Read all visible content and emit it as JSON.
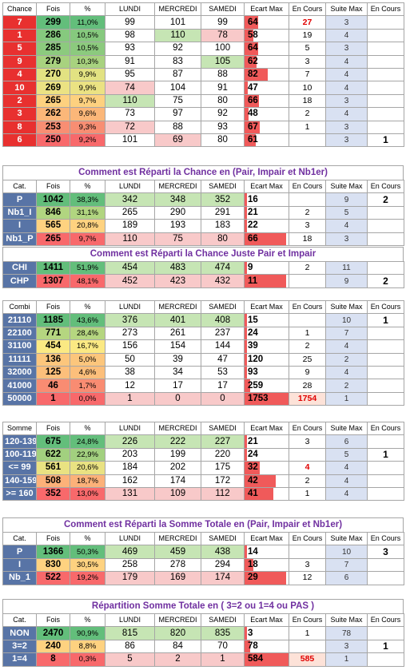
{
  "palette": {
    "chance_label": "#e8302f",
    "cat_label": "#5874a6",
    "green": "#a9d08e",
    "red": "#f4a8a8",
    "bar": "#f05a5a"
  },
  "chance_table": {
    "headers": [
      "Chance",
      "Fois",
      "%",
      "LUNDI",
      "MERCREDI",
      "SAMEDI",
      "Ecart Max",
      "En Cours",
      "Suite Max",
      "En Cours"
    ],
    "rows": [
      {
        "label": "7",
        "fois": "299",
        "pct": "11,0%",
        "lundi": "99",
        "mercredi": "101",
        "samedi": "99",
        "ecart": "64",
        "encours": "27",
        "suite": "3",
        "last": "",
        "fois_bg": "#63be7b",
        "pct_bg": "#63be7b",
        "lun_bg": "",
        "mer_bg": "",
        "sam_bg": "",
        "ecart_w": 0.3,
        "encours_red": true
      },
      {
        "label": "1",
        "fois": "286",
        "pct": "10,5%",
        "lundi": "98",
        "mercredi": "110",
        "samedi": "78",
        "ecart": "58",
        "encours": "19",
        "suite": "4",
        "last": "",
        "fois_bg": "#86c97e",
        "pct_bg": "#86c97e",
        "lun_bg": "",
        "mer_bg": "#c6e5b4",
        "sam_bg": "#f8c9c9",
        "ecart_w": 0.2
      },
      {
        "label": "5",
        "fois": "285",
        "pct": "10,5%",
        "lundi": "93",
        "mercredi": "92",
        "samedi": "100",
        "ecart": "64",
        "encours": "5",
        "suite": "3",
        "last": "",
        "fois_bg": "#8cca7e",
        "pct_bg": "#8cca7e",
        "lun_bg": "",
        "mer_bg": "",
        "sam_bg": "",
        "ecart_w": 0.3
      },
      {
        "label": "9",
        "fois": "279",
        "pct": "10,3%",
        "lundi": "91",
        "mercredi": "83",
        "samedi": "105",
        "ecart": "62",
        "encours": "3",
        "suite": "4",
        "last": "",
        "fois_bg": "#a8d27f",
        "pct_bg": "#a8d27f",
        "lun_bg": "",
        "mer_bg": "",
        "sam_bg": "#c6e5b4",
        "ecart_w": 0.27
      },
      {
        "label": "4",
        "fois": "270",
        "pct": "9,9%",
        "lundi": "95",
        "mercredi": "87",
        "samedi": "88",
        "ecart": "82",
        "encours": "7",
        "suite": "4",
        "last": "",
        "fois_bg": "#e2e282",
        "pct_bg": "#e2e282",
        "lun_bg": "",
        "mer_bg": "",
        "sam_bg": "",
        "ecart_w": 0.52
      },
      {
        "label": "10",
        "fois": "269",
        "pct": "9,9%",
        "lundi": "74",
        "mercredi": "104",
        "samedi": "91",
        "ecart": "47",
        "encours": "10",
        "suite": "4",
        "last": "",
        "fois_bg": "#ebe283",
        "pct_bg": "#ebe283",
        "lun_bg": "#f8c9c9",
        "mer_bg": "",
        "sam_bg": "",
        "ecart_w": 0.08
      },
      {
        "label": "2",
        "fois": "265",
        "pct": "9,7%",
        "lundi": "110",
        "mercredi": "75",
        "samedi": "80",
        "ecart": "66",
        "encours": "18",
        "suite": "3",
        "last": "",
        "fois_bg": "#fdd17f",
        "pct_bg": "#fdd17f",
        "lun_bg": "#c6e5b4",
        "mer_bg": "",
        "sam_bg": "",
        "ecart_w": 0.33
      },
      {
        "label": "3",
        "fois": "262",
        "pct": "9,6%",
        "lundi": "73",
        "mercredi": "97",
        "samedi": "92",
        "ecart": "48",
        "encours": "2",
        "suite": "4",
        "last": "",
        "fois_bg": "#fbb779",
        "pct_bg": "#fbb779",
        "lun_bg": "",
        "mer_bg": "",
        "sam_bg": "",
        "ecart_w": 0.09
      },
      {
        "label": "8",
        "fois": "253",
        "pct": "9,3%",
        "lundi": "72",
        "mercredi": "88",
        "samedi": "93",
        "ecart": "67",
        "encours": "1",
        "suite": "3",
        "last": "",
        "fois_bg": "#f88e73",
        "pct_bg": "#f88e73",
        "lun_bg": "#f8c9c9",
        "mer_bg": "",
        "sam_bg": "",
        "ecart_w": 0.35
      },
      {
        "label": "6",
        "fois": "250",
        "pct": "9,2%",
        "lundi": "101",
        "mercredi": "69",
        "samedi": "80",
        "ecart": "61",
        "encours": "",
        "suite": "3",
        "last": "1",
        "fois_bg": "#f8696b",
        "pct_bg": "#f8696b",
        "lun_bg": "",
        "mer_bg": "#f8c9c9",
        "sam_bg": "",
        "ecart_w": 0.25
      }
    ]
  },
  "cat_table": {
    "title": "Comment est Réparti la Chance en (Pair, Impair et Nb1er)",
    "headers": [
      "Cat.",
      "Fois",
      "%",
      "LUNDI",
      "MERCREDI",
      "SAMEDI",
      "Ecart Max",
      "En Cours",
      "Suite Max",
      "En Cours"
    ],
    "rows": [
      {
        "label": "P",
        "fois": "1042",
        "pct": "38,3%",
        "lundi": "342",
        "mercredi": "348",
        "samedi": "352",
        "ecart": "16",
        "encours": "",
        "suite": "9",
        "last": "2",
        "fois_bg": "#63be7b",
        "pct_bg": "#63be7b",
        "lun_bg": "#c6e5b4",
        "mer_bg": "#c6e5b4",
        "sam_bg": "#c6e5b4",
        "ecart_w": 0.05
      },
      {
        "label": "Nb1_I",
        "fois": "846",
        "pct": "31,1%",
        "lundi": "265",
        "mercredi": "290",
        "samedi": "291",
        "ecart": "21",
        "encours": "2",
        "suite": "5",
        "last": "",
        "fois_bg": "#b1d580",
        "pct_bg": "#b1d580",
        "lun_bg": "",
        "mer_bg": "",
        "sam_bg": "",
        "ecart_w": 0.0
      },
      {
        "label": "I",
        "fois": "565",
        "pct": "20,8%",
        "lundi": "189",
        "mercredi": "193",
        "samedi": "183",
        "ecart": "22",
        "encours": "3",
        "suite": "4",
        "last": "",
        "fois_bg": "#fed280",
        "pct_bg": "#fed280",
        "lun_bg": "",
        "mer_bg": "",
        "sam_bg": "",
        "ecart_w": 0.03
      },
      {
        "label": "Nb1_P",
        "fois": "265",
        "pct": "9,7%",
        "lundi": "110",
        "mercredi": "75",
        "samedi": "80",
        "ecart": "66",
        "encours": "18",
        "suite": "3",
        "last": "",
        "fois_bg": "#f8696b",
        "pct_bg": "#f8696b",
        "lun_bg": "#f8c9c9",
        "mer_bg": "#f8c9c9",
        "sam_bg": "#f8c9c9",
        "ecart_w": 0.95
      }
    ]
  },
  "pair_table": {
    "title": "Comment est Réparti la Chance Juste Pair et Impair",
    "rows": [
      {
        "label": "CHI",
        "fois": "1411",
        "pct": "51,9%",
        "lundi": "454",
        "mercredi": "483",
        "samedi": "474",
        "ecart": "9",
        "encours": "2",
        "suite": "11",
        "last": "",
        "fois_bg": "#63be7b",
        "pct_bg": "#63be7b",
        "lun_bg": "#c6e5b4",
        "mer_bg": "#c6e5b4",
        "sam_bg": "#c6e5b4",
        "ecart_w": 0.05
      },
      {
        "label": "CHP",
        "fois": "1307",
        "pct": "48,1%",
        "lundi": "452",
        "mercredi": "423",
        "samedi": "432",
        "ecart": "11",
        "encours": "",
        "suite": "9",
        "last": "2",
        "fois_bg": "#f8696b",
        "pct_bg": "#f8696b",
        "lun_bg": "#f8c9c9",
        "mer_bg": "#f8c9c9",
        "sam_bg": "#f8c9c9",
        "ecart_w": 0.95
      }
    ]
  },
  "combi_table": {
    "headers": [
      "Combi",
      "Fois",
      "%",
      "LUNDI",
      "MERCREDI",
      "SAMEDI",
      "Ecart Max",
      "En Cours",
      "Suite Max",
      "En Cours"
    ],
    "rows": [
      {
        "label": "21110",
        "fois": "1185",
        "pct": "43,6%",
        "lundi": "376",
        "mercredi": "401",
        "samedi": "408",
        "ecart": "15",
        "encours": "",
        "suite": "10",
        "last": "1",
        "fois_bg": "#63be7b",
        "pct_bg": "#63be7b",
        "lun_bg": "#c6e5b4",
        "mer_bg": "#c6e5b4",
        "sam_bg": "#c6e5b4",
        "ecart_w": 0.0
      },
      {
        "label": "22100",
        "fois": "771",
        "pct": "28,4%",
        "lundi": "273",
        "mercredi": "261",
        "samedi": "237",
        "ecart": "24",
        "encours": "1",
        "suite": "7",
        "last": "",
        "fois_bg": "#b5d680",
        "pct_bg": "#b5d680",
        "lun_bg": "",
        "mer_bg": "",
        "sam_bg": "",
        "ecart_w": 0.0
      },
      {
        "label": "31100",
        "fois": "454",
        "pct": "16,7%",
        "lundi": "156",
        "mercredi": "154",
        "samedi": "144",
        "ecart": "39",
        "encours": "2",
        "suite": "4",
        "last": "",
        "fois_bg": "#fbe983",
        "pct_bg": "#fbe983",
        "lun_bg": "",
        "mer_bg": "",
        "sam_bg": "",
        "ecart_w": 0.01
      },
      {
        "label": "11111",
        "fois": "136",
        "pct": "5,0%",
        "lundi": "50",
        "mercredi": "39",
        "samedi": "47",
        "ecart": "120",
        "encours": "25",
        "suite": "2",
        "last": "",
        "fois_bg": "#fcc67c",
        "pct_bg": "#fcc67c",
        "lun_bg": "",
        "mer_bg": "",
        "sam_bg": "",
        "ecart_w": 0.04
      },
      {
        "label": "32000",
        "fois": "125",
        "pct": "4,6%",
        "lundi": "38",
        "mercredi": "34",
        "samedi": "53",
        "ecart": "93",
        "encours": "9",
        "suite": "4",
        "last": "",
        "fois_bg": "#fcbf7b",
        "pct_bg": "#fcbf7b",
        "lun_bg": "",
        "mer_bg": "",
        "sam_bg": "",
        "ecart_w": 0.03
      },
      {
        "label": "41000",
        "fois": "46",
        "pct": "1,7%",
        "lundi": "12",
        "mercredi": "17",
        "samedi": "17",
        "ecart": "259",
        "encours": "28",
        "suite": "2",
        "last": "",
        "fois_bg": "#f98c72",
        "pct_bg": "#f98c72",
        "lun_bg": "",
        "mer_bg": "",
        "sam_bg": "",
        "ecart_w": 0.12
      },
      {
        "label": "50000",
        "fois": "1",
        "pct": "0,0%",
        "lundi": "1",
        "mercredi": "0",
        "samedi": "0",
        "ecart": "1753",
        "encours": "1754",
        "suite": "1",
        "last": "",
        "fois_bg": "#f8696b",
        "pct_bg": "#f8696b",
        "lun_bg": "#f8c9c9",
        "mer_bg": "#f8c9c9",
        "sam_bg": "#f8c9c9",
        "ecart_w": 1.0,
        "encours_red": true,
        "encours_bg": "#fde2d8"
      }
    ]
  },
  "somme_table": {
    "headers": [
      "Somme",
      "Fois",
      "%",
      "LUNDI",
      "MERCREDI",
      "SAMEDI",
      "Ecart Max",
      "En Cours",
      "Suite Max",
      "En Cours"
    ],
    "rows": [
      {
        "label": "120-139",
        "fois": "675",
        "pct": "24,8%",
        "lundi": "226",
        "mercredi": "222",
        "samedi": "227",
        "ecart": "21",
        "encours": "3",
        "suite": "6",
        "last": "",
        "fois_bg": "#63be7b",
        "pct_bg": "#63be7b",
        "lun_bg": "#c6e5b4",
        "mer_bg": "#c6e5b4",
        "sam_bg": "#c6e5b4",
        "ecart_w": 0.0
      },
      {
        "label": "100-119",
        "fois": "622",
        "pct": "22,9%",
        "lundi": "203",
        "mercredi": "199",
        "samedi": "220",
        "ecart": "24",
        "encours": "",
        "suite": "5",
        "last": "1",
        "fois_bg": "#a2d07f",
        "pct_bg": "#a2d07f",
        "lun_bg": "",
        "mer_bg": "",
        "sam_bg": "",
        "ecart_w": 0.0
      },
      {
        "label": "<= 99",
        "fois": "561",
        "pct": "20,6%",
        "lundi": "184",
        "mercredi": "202",
        "samedi": "175",
        "ecart": "32",
        "encours": "4",
        "suite": "4",
        "last": "",
        "fois_bg": "#e9e282",
        "pct_bg": "#e9e282",
        "lun_bg": "",
        "mer_bg": "",
        "sam_bg": "",
        "ecart_w": 0.35,
        "encours_red": true
      },
      {
        "label": "140-159",
        "fois": "508",
        "pct": "18,7%",
        "lundi": "162",
        "mercredi": "174",
        "samedi": "172",
        "ecart": "42",
        "encours": "2",
        "suite": "4",
        "last": "",
        "fois_bg": "#fcb179",
        "pct_bg": "#fcb179",
        "lun_bg": "",
        "mer_bg": "",
        "sam_bg": "",
        "ecart_w": 0.7
      },
      {
        "label": ">= 160",
        "fois": "352",
        "pct": "13,0%",
        "lundi": "131",
        "mercredi": "109",
        "samedi": "112",
        "ecart": "41",
        "encours": "1",
        "suite": "4",
        "last": "",
        "fois_bg": "#f8696b",
        "pct_bg": "#f8696b",
        "lun_bg": "#f8c9c9",
        "mer_bg": "#f8c9c9",
        "sam_bg": "#f8c9c9",
        "ecart_w": 0.65
      }
    ]
  },
  "stotal_table": {
    "title": "Comment est Réparti la Somme Totale en (Pair, Impair et Nb1er)",
    "headers": [
      "Cat.",
      "Fois",
      "%",
      "LUNDI",
      "MERCREDI",
      "SAMEDI",
      "Ecart Max",
      "En Cours",
      "Suite Max",
      "En Cours"
    ],
    "rows": [
      {
        "label": "P",
        "fois": "1366",
        "pct": "50,3%",
        "lundi": "469",
        "mercredi": "459",
        "samedi": "438",
        "ecart": "14",
        "encours": "",
        "suite": "10",
        "last": "3",
        "fois_bg": "#63be7b",
        "pct_bg": "#63be7b",
        "lun_bg": "#c6e5b4",
        "mer_bg": "#c6e5b4",
        "sam_bg": "#c6e5b4",
        "ecart_w": 0.0
      },
      {
        "label": "I",
        "fois": "830",
        "pct": "30,5%",
        "lundi": "258",
        "mercredi": "278",
        "samedi": "294",
        "ecart": "18",
        "encours": "3",
        "suite": "7",
        "last": "",
        "fois_bg": "#fed280",
        "pct_bg": "#fed280",
        "lun_bg": "",
        "mer_bg": "",
        "sam_bg": "",
        "ecart_w": 0.2
      },
      {
        "label": "Nb_1",
        "fois": "522",
        "pct": "19,2%",
        "lundi": "179",
        "mercredi": "169",
        "samedi": "174",
        "ecart": "29",
        "encours": "12",
        "suite": "6",
        "last": "",
        "fois_bg": "#f8696b",
        "pct_bg": "#f8696b",
        "lun_bg": "#f8c9c9",
        "mer_bg": "#f8c9c9",
        "sam_bg": "#f8c9c9",
        "ecart_w": 0.95
      }
    ]
  },
  "rep_table": {
    "title": "Répartition Somme Totale en ( 3=2 ou 1=4 ou PAS )",
    "headers": [
      "Cat.",
      "Fois",
      "%",
      "LUNDI",
      "MERCREDI",
      "SAMEDI",
      "Ecart Max",
      "En Cours",
      "Suite Max",
      "En Cours"
    ],
    "rows": [
      {
        "label": "NON",
        "fois": "2470",
        "pct": "90,9%",
        "lundi": "815",
        "mercredi": "820",
        "samedi": "835",
        "ecart": "3",
        "encours": "1",
        "suite": "78",
        "last": "",
        "fois_bg": "#63be7b",
        "pct_bg": "#63be7b",
        "lun_bg": "#c6e5b4",
        "mer_bg": "#c6e5b4",
        "sam_bg": "#c6e5b4",
        "ecart_w": 0.0
      },
      {
        "label": "3=2",
        "fois": "240",
        "pct": "8,8%",
        "lundi": "86",
        "mercredi": "84",
        "samedi": "70",
        "ecart": "78",
        "encours": "",
        "suite": "3",
        "last": "1",
        "fois_bg": "#fed280",
        "pct_bg": "#fed280",
        "lun_bg": "",
        "mer_bg": "",
        "sam_bg": "",
        "ecart_w": 0.12
      },
      {
        "label": "1=4",
        "fois": "8",
        "pct": "0,3%",
        "lundi": "5",
        "mercredi": "2",
        "samedi": "1",
        "ecart": "584",
        "encours": "585",
        "suite": "1",
        "last": "",
        "fois_bg": "#f8696b",
        "pct_bg": "#f8696b",
        "lun_bg": "#f8c9c9",
        "mer_bg": "#f8c9c9",
        "sam_bg": "#f8c9c9",
        "ecart_w": 1.0,
        "encours_red": true,
        "encours_bg": "#fde2d8"
      }
    ]
  }
}
